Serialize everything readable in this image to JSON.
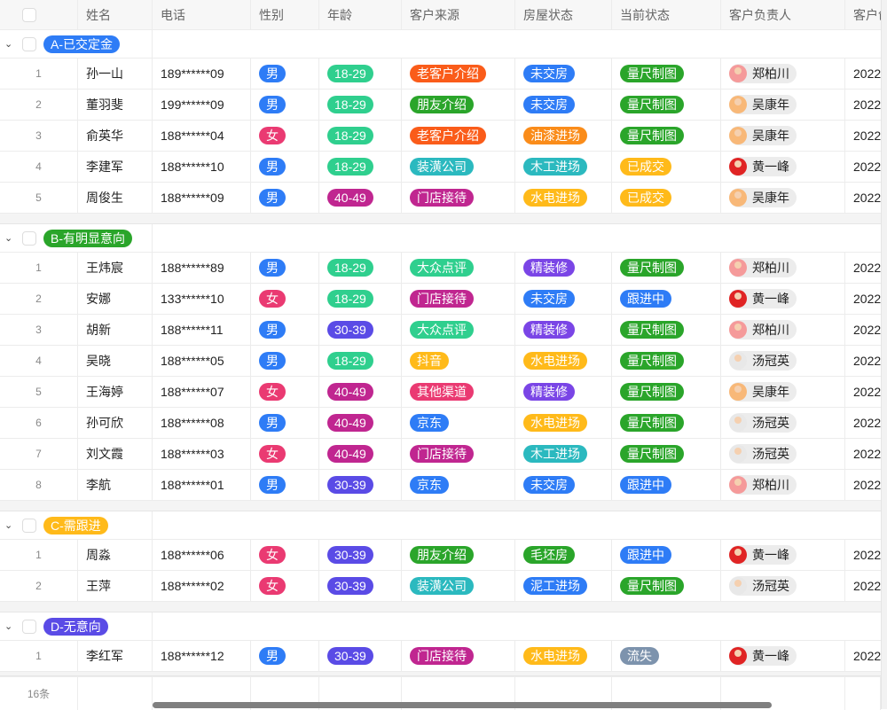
{
  "columns": [
    "姓名",
    "电话",
    "性别",
    "年龄",
    "客户来源",
    "房屋状态",
    "当前状态",
    "客户负责人",
    "客户创"
  ],
  "colors": {
    "男": "#2e7cf6",
    "女": "#ea3a72",
    "18-29": "#2fcf8e",
    "30-39": "#5a4be6",
    "40-49": "#c02690",
    "老客户介绍": "#fa5c1a",
    "朋友介绍": "#2aa52a",
    "装潢公司": "#2bb9bf",
    "门店接待": "#c02690",
    "大众点评": "#2fcf8e",
    "抖音": "#ffba1a",
    "其他渠道": "#ea3a72",
    "京东": "#2e7cf6",
    "未交房": "#2e7cf6",
    "油漆进场": "#fa8c1a",
    "木工进场": "#2bb9bf",
    "水电进场": "#ffba1a",
    "精装修": "#7a45e6",
    "毛坯房": "#2aa52a",
    "泥工进场": "#2e7cf6",
    "量尺制图": "#2aa52a",
    "已成交": "#ffba1a",
    "跟进中": "#2e7cf6",
    "流失": "#7d93ad"
  },
  "avatars": {
    "郑柏川": "#f59a9a",
    "吴康年": "#f8b878",
    "黄一峰": "#e02424",
    "汤冠英": "#e8e8e8"
  },
  "groups": [
    {
      "label": "A-已交定金",
      "color": "#2e7cf6",
      "rows": [
        [
          "1",
          "孙一山",
          "189******09",
          "男",
          "18-29",
          "老客户介绍",
          "未交房",
          "量尺制图",
          "郑柏川",
          "2022"
        ],
        [
          "2",
          "董羽斐",
          "199******09",
          "男",
          "18-29",
          "朋友介绍",
          "未交房",
          "量尺制图",
          "吴康年",
          "2022"
        ],
        [
          "3",
          "俞英华",
          "188******04",
          "女",
          "18-29",
          "老客户介绍",
          "油漆进场",
          "量尺制图",
          "吴康年",
          "2022"
        ],
        [
          "4",
          "李建军",
          "188******10",
          "男",
          "18-29",
          "装潢公司",
          "木工进场",
          "已成交",
          "黄一峰",
          "2022"
        ],
        [
          "5",
          "周俊生",
          "188******09",
          "男",
          "40-49",
          "门店接待",
          "水电进场",
          "已成交",
          "吴康年",
          "2022"
        ]
      ]
    },
    {
      "label": "B-有明显意向",
      "color": "#2aa52a",
      "rows": [
        [
          "1",
          "王炜宸",
          "188******89",
          "男",
          "18-29",
          "大众点评",
          "精装修",
          "量尺制图",
          "郑柏川",
          "2022"
        ],
        [
          "2",
          "安娜",
          "133******10",
          "女",
          "18-29",
          "门店接待",
          "未交房",
          "跟进中",
          "黄一峰",
          "2022"
        ],
        [
          "3",
          "胡新",
          "188******11",
          "男",
          "30-39",
          "大众点评",
          "精装修",
          "量尺制图",
          "郑柏川",
          "2022"
        ],
        [
          "4",
          "吴晓",
          "188******05",
          "男",
          "18-29",
          "抖音",
          "水电进场",
          "量尺制图",
          "汤冠英",
          "2022"
        ],
        [
          "5",
          "王海婷",
          "188******07",
          "女",
          "40-49",
          "其他渠道",
          "精装修",
          "量尺制图",
          "吴康年",
          "2022"
        ],
        [
          "6",
          "孙可欣",
          "188******08",
          "男",
          "40-49",
          "京东",
          "水电进场",
          "量尺制图",
          "汤冠英",
          "2022"
        ],
        [
          "7",
          "刘文霞",
          "188******03",
          "女",
          "40-49",
          "门店接待",
          "木工进场",
          "量尺制图",
          "汤冠英",
          "2022"
        ],
        [
          "8",
          "李航",
          "188******01",
          "男",
          "30-39",
          "京东",
          "未交房",
          "跟进中",
          "郑柏川",
          "2022"
        ]
      ]
    },
    {
      "label": "C-需跟进",
      "color": "#ffba1a",
      "rows": [
        [
          "1",
          "周淼",
          "188******06",
          "女",
          "30-39",
          "朋友介绍",
          "毛坯房",
          "跟进中",
          "黄一峰",
          "2022"
        ],
        [
          "2",
          "王萍",
          "188******02",
          "女",
          "30-39",
          "装潢公司",
          "泥工进场",
          "量尺制图",
          "汤冠英",
          "2022"
        ]
      ]
    },
    {
      "label": "D-无意向",
      "color": "#5a4be6",
      "rows": [
        [
          "1",
          "李红军",
          "188******12",
          "男",
          "30-39",
          "门店接待",
          "水电进场",
          "流失",
          "黄一峰",
          "2022"
        ]
      ]
    }
  ],
  "footer": {
    "count": "16条"
  }
}
